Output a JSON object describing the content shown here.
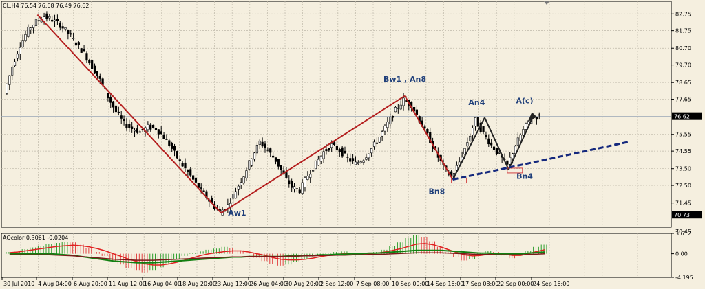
{
  "chart_data": {
    "type": "candlestick",
    "header": "CL,H4  76.54 76.68 76.49 76.62",
    "symbol": "CL,H4",
    "ohlc": {
      "open": 76.54,
      "high": 76.68,
      "low": 76.49,
      "close": 76.62
    },
    "price_axis": {
      "min": 70.0,
      "max": 83.5,
      "ticks": [
        "82.75",
        "81.75",
        "80.70",
        "79.70",
        "78.65",
        "77.65",
        "76.62",
        "75.55",
        "74.55",
        "73.50",
        "72.50",
        "71.45",
        "70.73"
      ],
      "current_price": "76.62",
      "marked_price": "70.73"
    },
    "x_labels": [
      "30 Jul 2010",
      "4 Aug 04:00",
      "6 Aug 20:00",
      "11 Aug 12:00",
      "16 Aug 04:00",
      "18 Aug 20:00",
      "23 Aug 12:00",
      "26 Aug 04:00",
      "30 Aug 20:00",
      "2 Sep 12:00",
      "7 Sep 08:00",
      "10 Sep 00:00",
      "14 Sep 16:00",
      "17 Sep 08:00",
      "22 Sep 00:00",
      "24 Sep 16:00"
    ],
    "close_path": [
      78.0,
      79.6,
      80.9,
      81.8,
      82.3,
      82.6,
      82.4,
      82.1,
      81.6,
      81.0,
      80.4,
      79.6,
      78.8,
      77.8,
      76.9,
      76.2,
      75.9,
      75.7,
      76.0,
      75.9,
      75.4,
      74.7,
      73.9,
      73.3,
      72.6,
      72.0,
      71.4,
      70.9,
      71.3,
      72.2,
      73.1,
      74.2,
      75.1,
      74.6,
      74.0,
      73.1,
      72.4,
      72.2,
      73.1,
      73.8,
      74.5,
      74.9,
      74.6,
      74.1,
      73.8,
      74.1,
      74.7,
      75.4,
      76.2,
      77.0,
      77.6,
      77.3,
      76.4,
      75.5,
      74.5,
      73.6,
      73.0,
      73.9,
      75.1,
      76.4,
      75.6,
      74.9,
      74.3,
      73.7,
      74.9,
      75.8,
      76.6,
      76.6
    ],
    "zigzag": [
      {
        "i": 4,
        "price": 82.7
      },
      {
        "i": 27,
        "price": 70.85
      },
      {
        "i": 50,
        "price": 77.85
      },
      {
        "i": 56,
        "price": 72.85
      },
      {
        "i": 60,
        "price": 76.55
      },
      {
        "i": 63,
        "price": 73.45
      },
      {
        "i": 66,
        "price": 76.55
      }
    ],
    "trendline": {
      "from": {
        "i": 56,
        "price": 72.85
      },
      "to": {
        "i": 78,
        "price": 75.1
      }
    },
    "wave_labels": [
      {
        "text": "Aw1",
        "i": 29,
        "price": 70.7
      },
      {
        "text": "Bw1 , An8",
        "i": 50,
        "price": 78.7
      },
      {
        "text": "An4",
        "i": 59,
        "price": 77.3
      },
      {
        "text": "A(c)",
        "i": 65,
        "price": 77.4
      },
      {
        "text": "Bn8",
        "i": 54,
        "price": 72.0
      },
      {
        "text": "Bn4",
        "i": 65,
        "price": 72.9
      }
    ],
    "indicator": {
      "name": "AOcolor",
      "header": "AOcolor  0.3061 -0.0204",
      "ticks": [
        "3.612",
        "0.00",
        "-4.195"
      ],
      "top_label": "70.45",
      "ylim": [
        -4.195,
        3.612
      ],
      "histogram": [
        0.3,
        0.5,
        0.8,
        1.1,
        1.4,
        1.7,
        1.9,
        2.1,
        2.0,
        1.6,
        1.0,
        0.3,
        -0.4,
        -1.2,
        -1.9,
        -2.5,
        -3.0,
        -3.3,
        -3.0,
        -2.4,
        -1.7,
        -1.0,
        -0.4,
        0.1,
        0.4,
        0.7,
        0.9,
        1.2,
        1.0,
        0.6,
        0.0,
        -0.7,
        -1.3,
        -1.8,
        -2.1,
        -1.9,
        -1.5,
        -1.0,
        -0.5,
        -0.2,
        0.1,
        0.3,
        0.4,
        0.2,
        -0.1,
        0.0,
        0.3,
        0.7,
        1.3,
        2.0,
        2.8,
        3.3,
        3.0,
        2.2,
        1.2,
        0.3,
        -0.6,
        -1.2,
        -0.9,
        -0.2,
        0.5,
        0.3,
        -0.3,
        -0.8,
        -0.3,
        0.5,
        1.2,
        1.6
      ],
      "signal": [
        0.2,
        0.3,
        0.5,
        0.7,
        0.9,
        1.1,
        1.3,
        1.4,
        1.5,
        1.4,
        1.2,
        0.9,
        0.5,
        0.0,
        -0.5,
        -1.0,
        -1.4,
        -1.8,
        -2.0,
        -2.0,
        -1.8,
        -1.5,
        -1.1,
        -0.7,
        -0.3,
        0.0,
        0.2,
        0.4,
        0.5,
        0.5,
        0.3,
        0.0,
        -0.3,
        -0.7,
        -1.0,
        -1.1,
        -1.1,
        -1.0,
        -0.8,
        -0.5,
        -0.3,
        -0.1,
        0.0,
        0.1,
        0.0,
        0.0,
        0.1,
        0.3,
        0.6,
        0.9,
        1.3,
        1.7,
        1.8,
        1.6,
        1.2,
        0.7,
        0.2,
        -0.2,
        -0.4,
        -0.3,
        -0.1,
        0.0,
        -0.1,
        -0.3,
        -0.3,
        0.0,
        0.4,
        0.7
      ],
      "trend": [
        0.0,
        0.0,
        0.0,
        0.0,
        0.0,
        0.0,
        -0.1,
        -0.2,
        -0.3,
        -0.5,
        -0.7,
        -0.9,
        -1.1,
        -1.3,
        -1.4,
        -1.5,
        -1.6,
        -1.6,
        -1.6,
        -1.5,
        -1.4,
        -1.3,
        -1.2,
        -1.1,
        -1.0,
        -0.9,
        -0.8,
        -0.7,
        -0.6,
        -0.6,
        -0.5,
        -0.5,
        -0.5,
        -0.5,
        -0.5,
        -0.4,
        -0.4,
        -0.3,
        -0.3,
        -0.2,
        -0.2,
        -0.1,
        -0.1,
        0.0,
        0.0,
        0.1,
        0.1,
        0.2,
        0.3,
        0.4,
        0.5,
        0.6,
        0.6,
        0.6,
        0.6,
        0.5,
        0.4,
        0.3,
        0.2,
        0.1,
        0.1,
        0.0,
        0.0,
        0.0,
        0.0,
        0.1,
        0.2,
        0.3
      ]
    },
    "colors": {
      "background": "#f5efdf",
      "grid": "#bdb7a8",
      "candle": "#000000",
      "zigzag": "#b41e1e",
      "trendline": "#14287d",
      "labels": "#1f3f7a",
      "hist_up": "#2a9d2a",
      "hist_down": "#e14040",
      "signal": "#e02020",
      "trend": "#118011",
      "box": "#d04040"
    },
    "grid": true
  }
}
